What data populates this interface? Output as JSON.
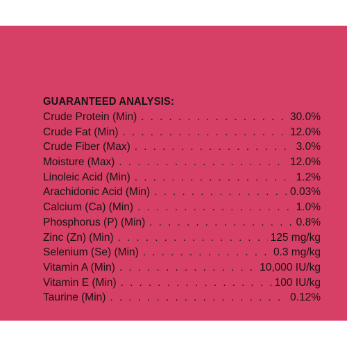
{
  "label": {
    "heading": "GUARANTEED ANALYSIS:",
    "colors": {
      "background": "#d63f66",
      "text": "#141414"
    },
    "rows": [
      {
        "name": "Crude Protein (Min)",
        "value": "30.0%"
      },
      {
        "name": "Crude Fat (Min)",
        "value": "12.0%"
      },
      {
        "name": "Crude Fiber (Max)",
        "value": "3.0%"
      },
      {
        "name": "Moisture (Max)",
        "value": "12.0%"
      },
      {
        "name": "Linoleic Acid (Min)",
        "value": "1.2%"
      },
      {
        "name": "Arachidonic Acid (Min)",
        "value": "0.03%"
      },
      {
        "name": "Calcium (Ca) (Min)",
        "value": "1.0%"
      },
      {
        "name": "Phosphorus (P) (Min)",
        "value": "0.8%"
      },
      {
        "name": "Zinc (Zn) (Min)",
        "value": "125 mg/kg"
      },
      {
        "name": "Selenium (Se) (Min)",
        "value": "0.3 mg/kg"
      },
      {
        "name": "Vitamin A (Min)",
        "value": "10,000 IU/kg"
      },
      {
        "name": "Vitamin E (Min)",
        "value": "100 IU/kg"
      },
      {
        "name": "Taurine (Min)",
        "value": "0.12%"
      }
    ]
  }
}
